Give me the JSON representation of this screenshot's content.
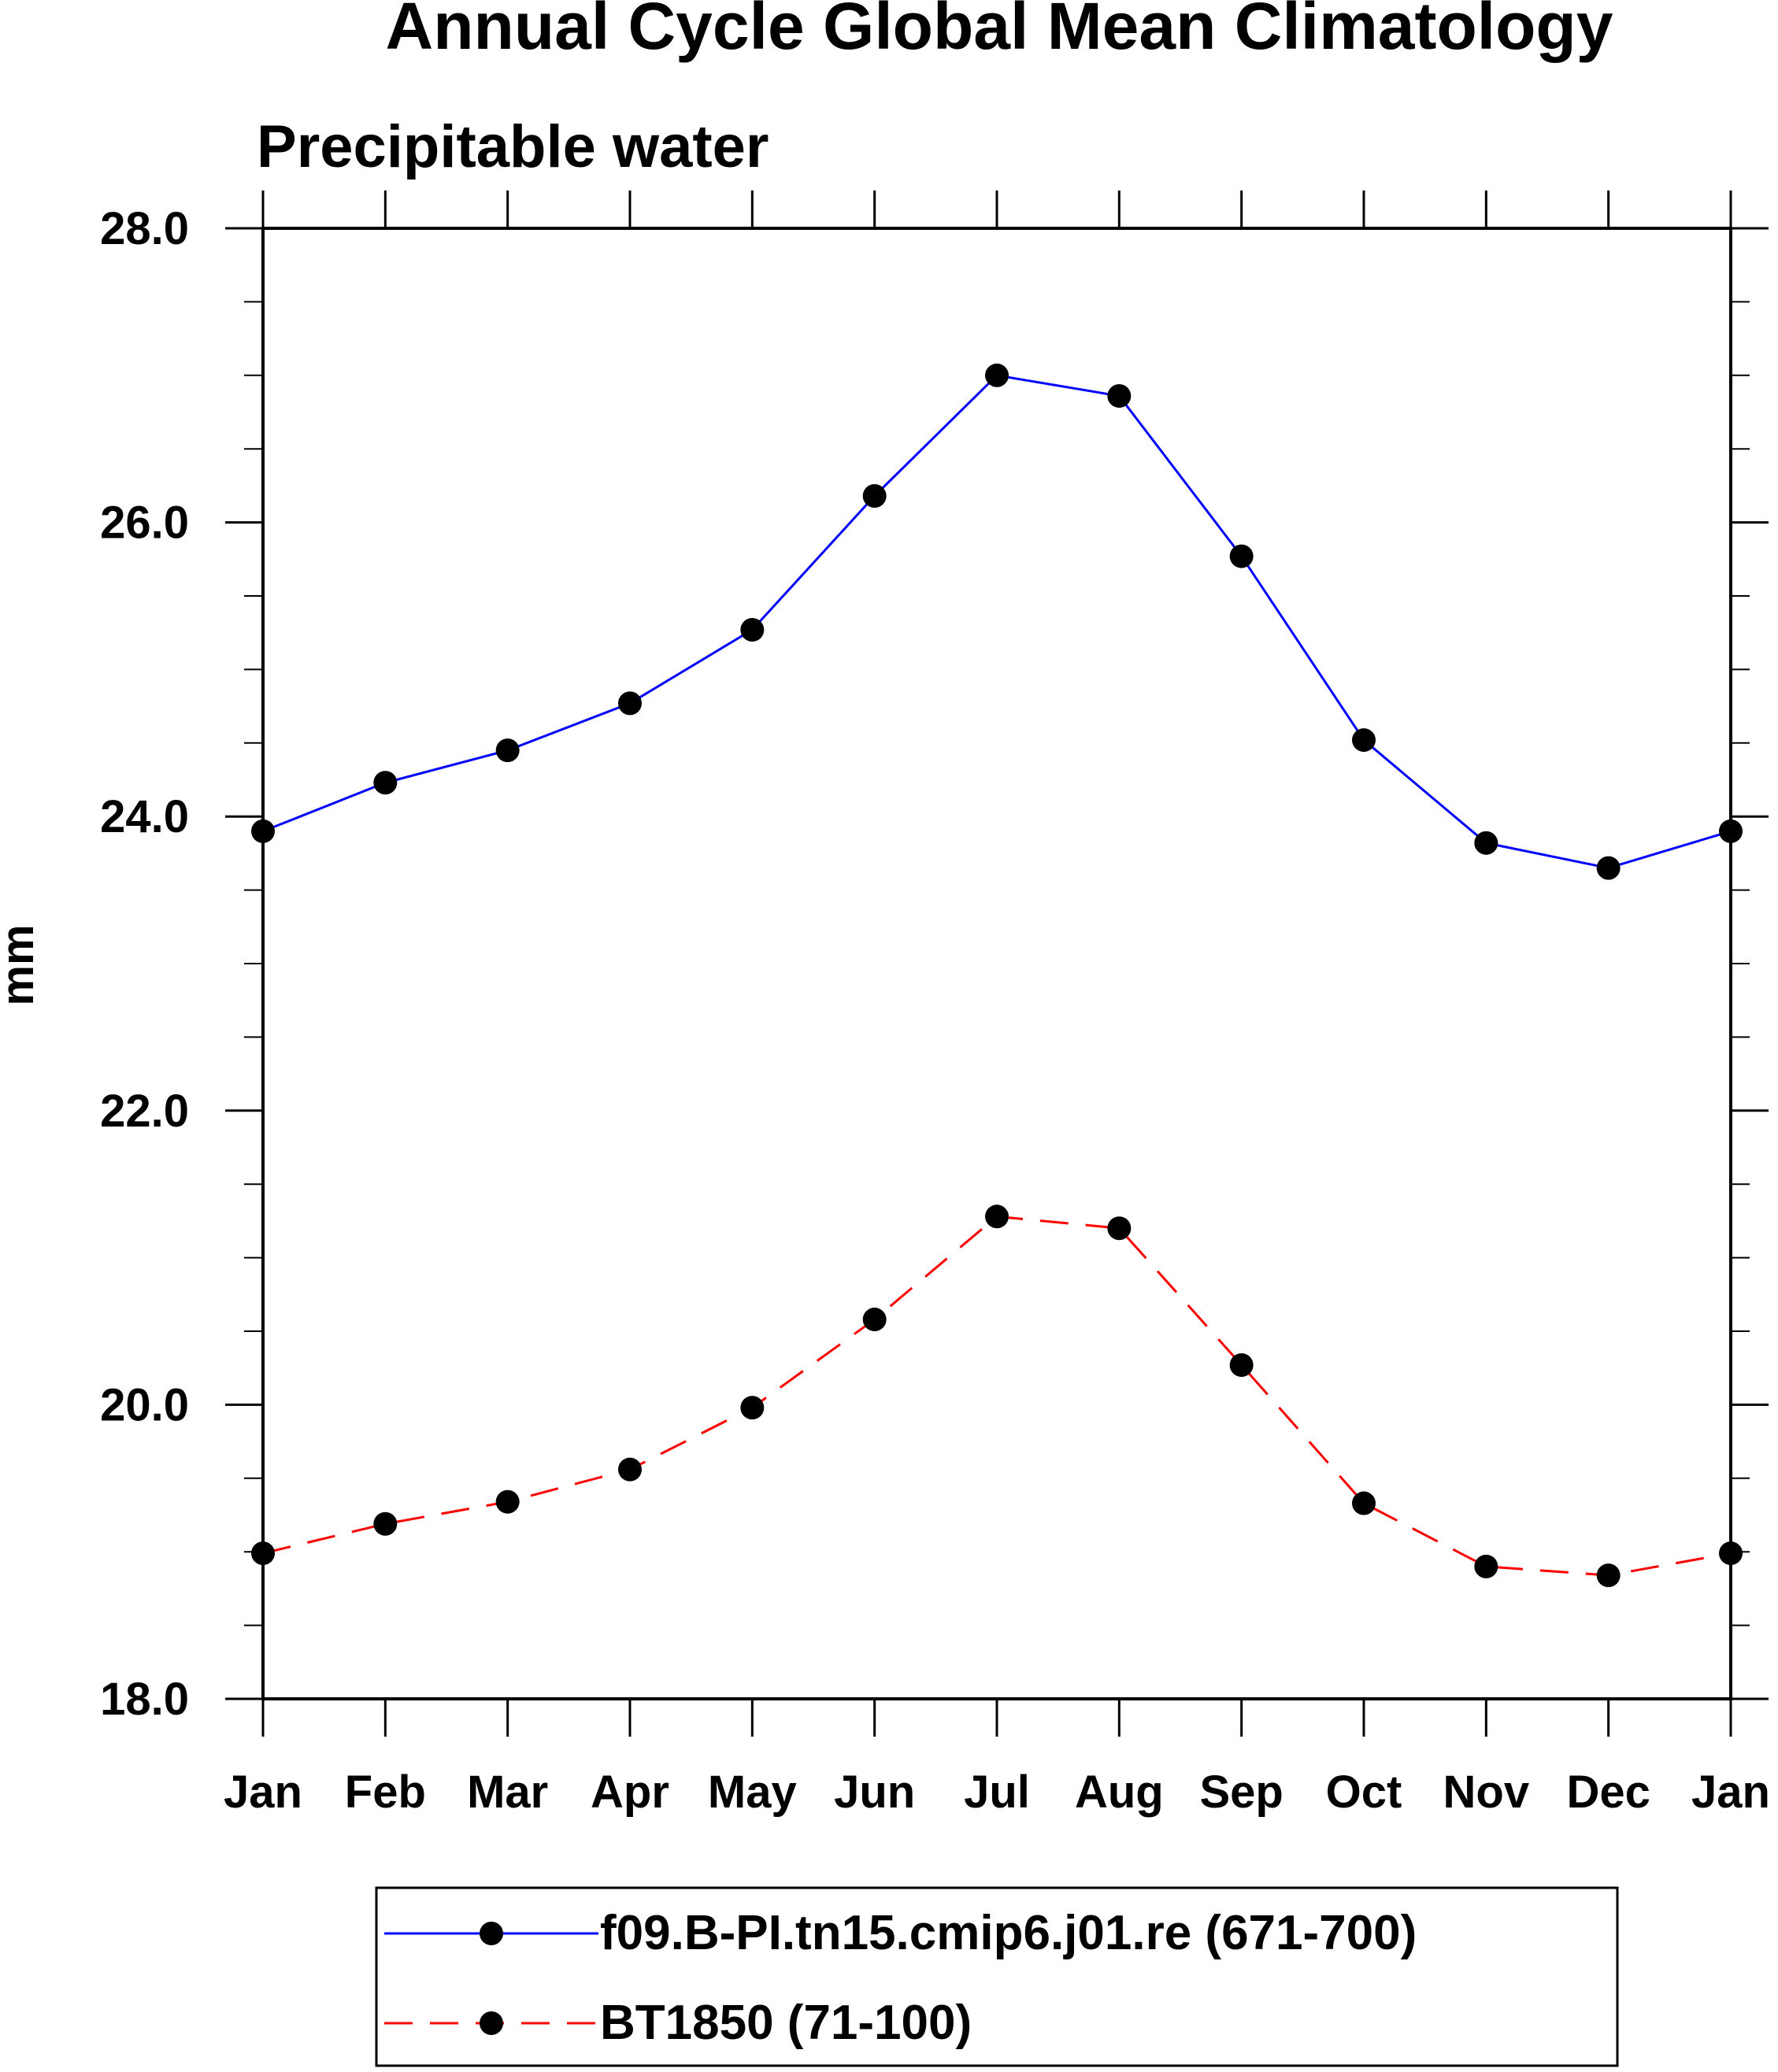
{
  "chart_data": {
    "type": "line",
    "title": "Annual Cycle Global Mean Climatology",
    "subtitle": "Precipitable water",
    "xlabel": "",
    "ylabel": "mm",
    "ylim": [
      18.0,
      28.0
    ],
    "yticks": [
      "18.0",
      "20.0",
      "22.0",
      "24.0",
      "26.0",
      "28.0"
    ],
    "categories": [
      "Jan",
      "Feb",
      "Mar",
      "Apr",
      "May",
      "Jun",
      "Jul",
      "Aug",
      "Sep",
      "Oct",
      "Nov",
      "Dec",
      "Jan"
    ],
    "grid": false,
    "legend_position": "bottom",
    "series": [
      {
        "name": "f09.B-PI.tn15.cmip6.j01.re (671-700)",
        "color": "#0000ff",
        "dash": "solid",
        "values": [
          23.9,
          24.23,
          24.45,
          24.77,
          25.27,
          26.18,
          27.0,
          26.86,
          25.77,
          24.52,
          23.82,
          23.65,
          23.9
        ]
      },
      {
        "name": "BT1850 (71-100)",
        "color": "#ff0000",
        "dash": "dashed",
        "values": [
          18.99,
          19.19,
          19.34,
          19.56,
          19.98,
          20.58,
          21.28,
          21.2,
          20.27,
          19.33,
          18.9,
          18.84,
          18.99
        ]
      }
    ]
  }
}
